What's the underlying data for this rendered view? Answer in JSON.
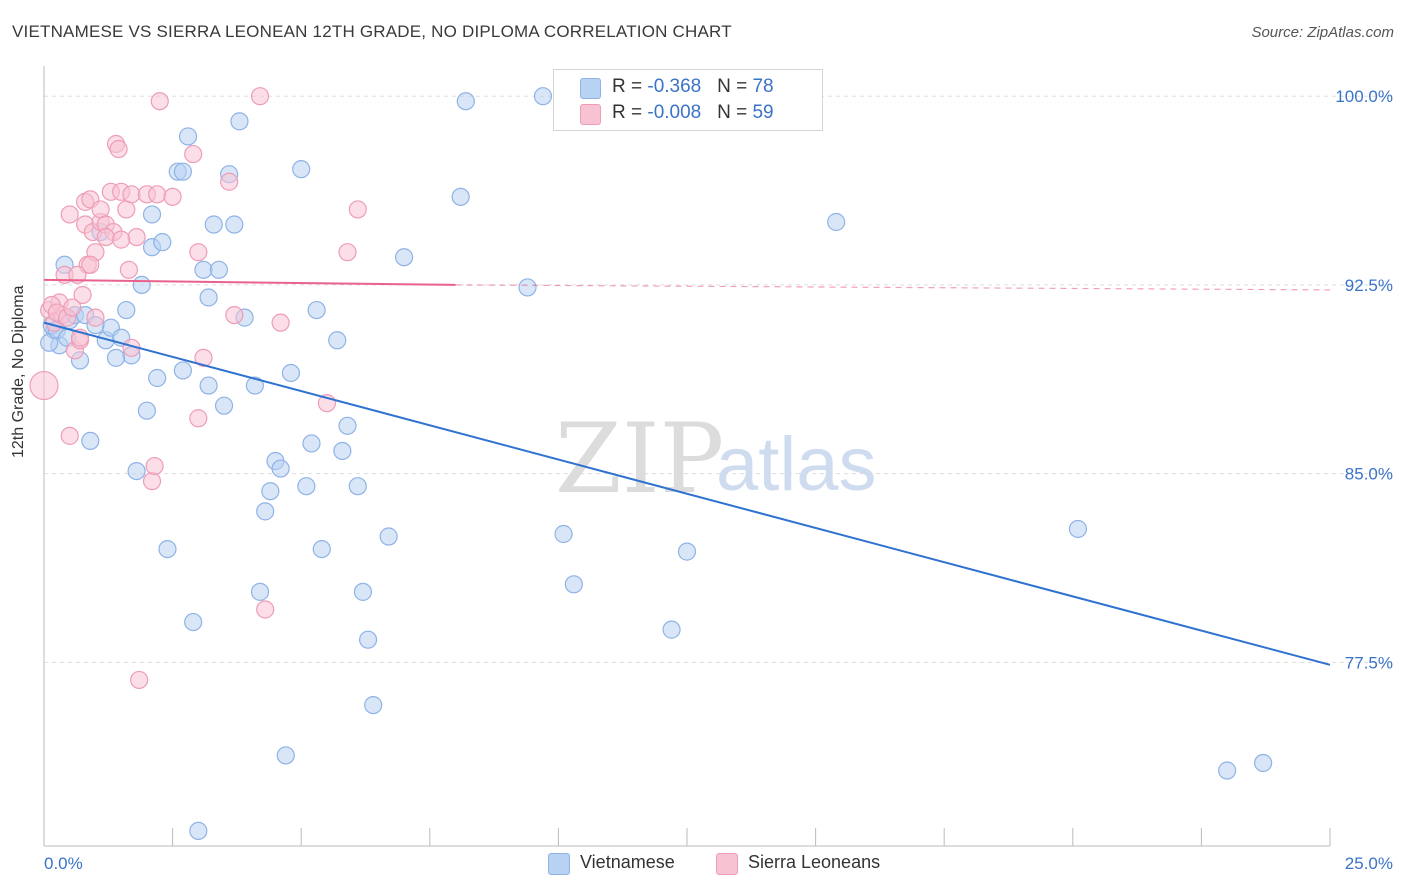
{
  "title": "VIETNAMESE VS SIERRA LEONEAN 12TH GRADE, NO DIPLOMA CORRELATION CHART",
  "source": "Source: ZipAtlas.com",
  "colors": {
    "vietnamese_fill": "#b8d2f2",
    "vietnamese_stroke": "#8fb3e6",
    "vietnamese_line": "#2f72d0",
    "sierra_fill": "#f7c3d3",
    "sierra_stroke": "#ee9db7",
    "sierra_line": "#e8628d",
    "axis_label": "#3a73c8",
    "grid": "#dddddd"
  },
  "legend": {
    "rows": [
      {
        "r_label": "R = ",
        "r_value": "-0.368",
        "n_label": "N = ",
        "n_value": "78"
      },
      {
        "r_label": "R = ",
        "r_value": "-0.008",
        "n_label": "N = ",
        "n_value": "59"
      }
    ]
  },
  "bottom_legend": [
    "Vietnamese",
    "Sierra Leoneans"
  ],
  "watermark": {
    "zip": "ZIP",
    "atlas": "atlas"
  },
  "chart_data": {
    "type": "scatter",
    "xlabel": "",
    "ylabel": "12th Grade, No Diploma",
    "xlim": [
      0,
      25
    ],
    "ylim": [
      70.2,
      101.2
    ],
    "x_tick_labels": [
      "0.0%",
      "25.0%"
    ],
    "y_ticks": [
      100.0,
      92.5,
      85.0,
      77.5
    ],
    "y_tick_labels": [
      "100.0%",
      "92.5%",
      "85.0%",
      "77.5%"
    ],
    "grid": true,
    "legend_position": "top-center",
    "series": [
      {
        "name": "Vietnamese",
        "r": -0.368,
        "n": 78,
        "trend": {
          "x": [
            0,
            25
          ],
          "y": [
            91.0,
            77.4
          ]
        },
        "points": [
          [
            0.2,
            90.7
          ],
          [
            0.3,
            90.1
          ],
          [
            0.4,
            93.3
          ],
          [
            0.5,
            91.1
          ],
          [
            0.6,
            91.3
          ],
          [
            0.7,
            89.5
          ],
          [
            0.9,
            86.3
          ],
          [
            1.1,
            94.6
          ],
          [
            1.2,
            90.3
          ],
          [
            1.3,
            90.8
          ],
          [
            1.5,
            90.4
          ],
          [
            1.6,
            91.5
          ],
          [
            1.7,
            89.7
          ],
          [
            1.8,
            85.1
          ],
          [
            1.9,
            92.5
          ],
          [
            2.0,
            87.5
          ],
          [
            2.1,
            94.0
          ],
          [
            2.1,
            95.3
          ],
          [
            2.2,
            88.8
          ],
          [
            2.3,
            94.2
          ],
          [
            2.4,
            82.0
          ],
          [
            2.7,
            89.1
          ],
          [
            2.6,
            97.0
          ],
          [
            2.7,
            97.0
          ],
          [
            2.8,
            98.4
          ],
          [
            2.9,
            79.1
          ],
          [
            3.0,
            70.8
          ],
          [
            3.1,
            93.1
          ],
          [
            3.2,
            92.0
          ],
          [
            3.2,
            88.5
          ],
          [
            3.3,
            94.9
          ],
          [
            3.4,
            93.1
          ],
          [
            3.5,
            87.7
          ],
          [
            3.6,
            96.9
          ],
          [
            3.7,
            94.9
          ],
          [
            3.8,
            99.0
          ],
          [
            3.9,
            91.2
          ],
          [
            4.1,
            88.5
          ],
          [
            4.2,
            80.3
          ],
          [
            4.3,
            83.5
          ],
          [
            4.4,
            84.3
          ],
          [
            4.5,
            85.5
          ],
          [
            4.6,
            85.2
          ],
          [
            4.7,
            73.8
          ],
          [
            4.8,
            89.0
          ],
          [
            5.0,
            97.1
          ],
          [
            5.1,
            84.5
          ],
          [
            5.2,
            86.2
          ],
          [
            5.3,
            91.5
          ],
          [
            5.4,
            82.0
          ],
          [
            5.7,
            90.3
          ],
          [
            5.8,
            85.9
          ],
          [
            5.9,
            86.9
          ],
          [
            6.1,
            84.5
          ],
          [
            6.2,
            80.3
          ],
          [
            6.3,
            78.4
          ],
          [
            6.4,
            75.8
          ],
          [
            6.7,
            82.5
          ],
          [
            7.0,
            93.6
          ],
          [
            8.1,
            96.0
          ],
          [
            8.2,
            99.8
          ],
          [
            9.4,
            92.4
          ],
          [
            9.7,
            100.0
          ],
          [
            10.1,
            82.6
          ],
          [
            10.3,
            80.6
          ],
          [
            12.2,
            78.8
          ],
          [
            12.5,
            81.9
          ],
          [
            15.4,
            95.0
          ],
          [
            20.1,
            82.8
          ],
          [
            23.0,
            73.2
          ],
          [
            23.7,
            73.5
          ],
          [
            0.1,
            90.2
          ],
          [
            0.15,
            90.9
          ],
          [
            0.25,
            90.7
          ],
          [
            0.45,
            90.4
          ],
          [
            0.8,
            91.3
          ],
          [
            1.0,
            90.9
          ],
          [
            1.4,
            89.6
          ]
        ]
      },
      {
        "name": "Sierra Leoneans",
        "r": -0.008,
        "n": 59,
        "trend": {
          "x": [
            0,
            8.0
          ],
          "y": [
            92.7,
            92.5
          ]
        },
        "trend_dashed": {
          "x": [
            8.0,
            25
          ],
          "y": [
            92.5,
            92.3
          ]
        },
        "points": [
          [
            0.0,
            88.5
          ],
          [
            0.1,
            91.5
          ],
          [
            0.2,
            91.0
          ],
          [
            0.3,
            91.8
          ],
          [
            0.35,
            91.3
          ],
          [
            0.4,
            92.9
          ],
          [
            0.5,
            86.5
          ],
          [
            0.5,
            95.3
          ],
          [
            0.6,
            89.9
          ],
          [
            0.7,
            90.3
          ],
          [
            0.75,
            92.1
          ],
          [
            0.8,
            95.8
          ],
          [
            0.8,
            94.9
          ],
          [
            0.85,
            93.3
          ],
          [
            0.9,
            95.9
          ],
          [
            0.95,
            94.6
          ],
          [
            1.0,
            93.8
          ],
          [
            1.0,
            91.2
          ],
          [
            1.1,
            95.0
          ],
          [
            1.1,
            95.5
          ],
          [
            1.2,
            94.9
          ],
          [
            1.3,
            96.2
          ],
          [
            1.35,
            94.6
          ],
          [
            1.4,
            98.1
          ],
          [
            1.45,
            97.9
          ],
          [
            1.5,
            96.2
          ],
          [
            1.6,
            95.5
          ],
          [
            1.7,
            96.1
          ],
          [
            1.65,
            93.1
          ],
          [
            1.7,
            90.0
          ],
          [
            1.8,
            94.4
          ],
          [
            1.85,
            76.8
          ],
          [
            2.0,
            96.1
          ],
          [
            2.1,
            84.7
          ],
          [
            2.15,
            85.3
          ],
          [
            2.2,
            96.1
          ],
          [
            2.25,
            99.8
          ],
          [
            2.5,
            96.0
          ],
          [
            2.9,
            97.7
          ],
          [
            3.0,
            93.8
          ],
          [
            3.0,
            87.2
          ],
          [
            3.1,
            89.6
          ],
          [
            3.6,
            96.6
          ],
          [
            3.7,
            91.3
          ],
          [
            4.3,
            79.6
          ],
          [
            4.2,
            100.0
          ],
          [
            4.6,
            91.0
          ],
          [
            5.5,
            87.8
          ],
          [
            5.9,
            93.8
          ],
          [
            6.1,
            95.5
          ],
          [
            0.15,
            91.7
          ],
          [
            0.25,
            91.4
          ],
          [
            0.45,
            91.2
          ],
          [
            0.55,
            91.6
          ],
          [
            0.65,
            92.9
          ],
          [
            0.7,
            90.4
          ],
          [
            0.9,
            93.3
          ],
          [
            1.2,
            94.4
          ],
          [
            1.5,
            94.3
          ]
        ]
      }
    ]
  }
}
